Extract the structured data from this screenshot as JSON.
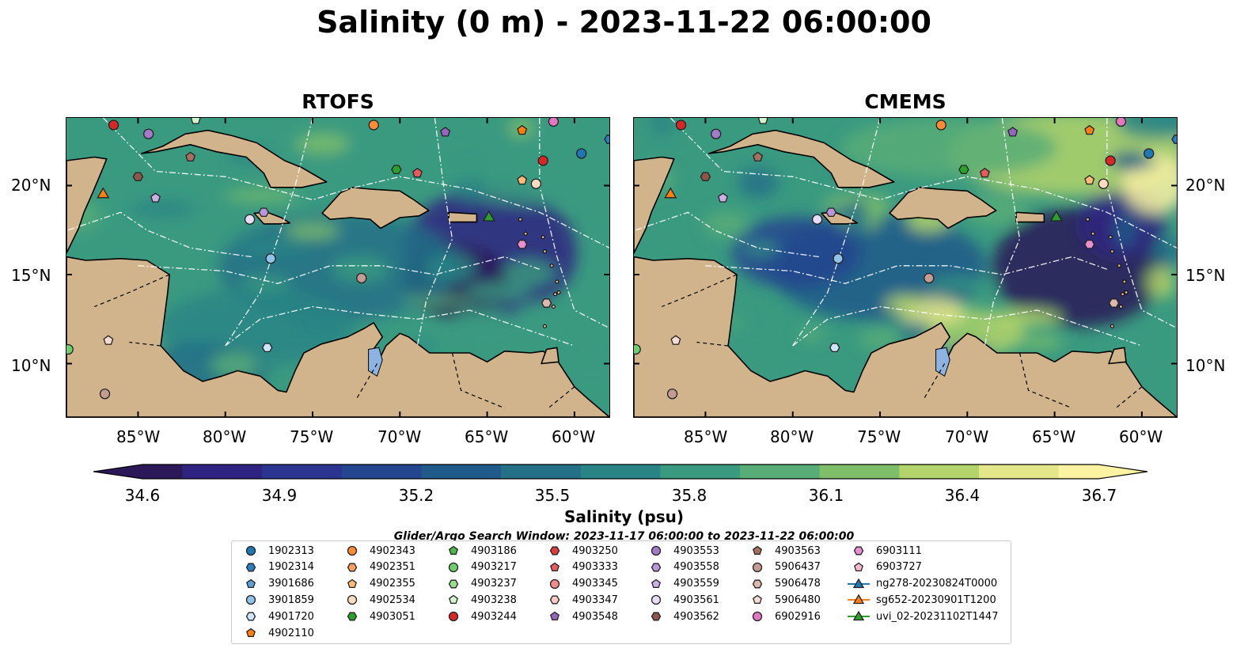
{
  "title": "Salinity (0 m) - 2023-11-22 06:00:00",
  "panels": [
    {
      "title": "RTOFS",
      "variant": "rtofs"
    },
    {
      "title": "CMEMS",
      "variant": "cmems"
    }
  ],
  "lon_ticks": [
    "85°W",
    "80°W",
    "75°W",
    "70°W",
    "65°W",
    "60°W"
  ],
  "lat_ticks": [
    "20°N",
    "15°N",
    "10°N"
  ],
  "colorbar": {
    "label": "Salinity (psu)",
    "ticks": [
      "34.6",
      "34.9",
      "35.2",
      "35.5",
      "35.8",
      "36.1",
      "36.4",
      "36.7"
    ],
    "min": 34.6,
    "max": 36.7,
    "colors": [
      "#2a1858",
      "#2e2380",
      "#2b3491",
      "#23468f",
      "#1f5a8a",
      "#237087",
      "#298585",
      "#3a9a80",
      "#58ad77",
      "#7fbf6a",
      "#b3d46a",
      "#e4e68a",
      "#fbf2a2"
    ]
  },
  "search_window": "Glider/Argo Search Window: 2023-11-17 06:00:00 to 2023-11-22 06:00:00",
  "legend": [
    {
      "label": "1902313",
      "marker": "circle",
      "color": "#1f77b4"
    },
    {
      "label": "1902314",
      "marker": "hexagon",
      "color": "#2a7fc0"
    },
    {
      "label": "3901686",
      "marker": "pentagon",
      "color": "#5a9fd6"
    },
    {
      "label": "3901859",
      "marker": "circle",
      "color": "#8fc3ea"
    },
    {
      "label": "4901720",
      "marker": "hexagon",
      "color": "#cfe6fa"
    },
    {
      "label": "4902110",
      "marker": "pentagon",
      "color": "#ff7f0e"
    },
    {
      "label": "4902343",
      "marker": "circle",
      "color": "#ff8c33"
    },
    {
      "label": "4902351",
      "marker": "hexagon",
      "color": "#ffa060"
    },
    {
      "label": "4902355",
      "marker": "pentagon",
      "color": "#ffbb78"
    },
    {
      "label": "4902534",
      "marker": "circle",
      "color": "#ffdcbf"
    },
    {
      "label": "4903051",
      "marker": "hexagon",
      "color": "#2ca02c"
    },
    {
      "label": "4903186",
      "marker": "pentagon",
      "color": "#4bb84b"
    },
    {
      "label": "4903217",
      "marker": "circle",
      "color": "#6fcf6f"
    },
    {
      "label": "4903237",
      "marker": "hexagon",
      "color": "#98df8a"
    },
    {
      "label": "4903238",
      "marker": "pentagon",
      "color": "#d2f5cc"
    },
    {
      "label": "4903244",
      "marker": "circle",
      "color": "#d62728"
    },
    {
      "label": "4903250",
      "marker": "hexagon",
      "color": "#dd3c3d"
    },
    {
      "label": "4903333",
      "marker": "pentagon",
      "color": "#e85a5b"
    },
    {
      "label": "4903345",
      "marker": "circle",
      "color": "#f28b8c"
    },
    {
      "label": "4903347",
      "marker": "hexagon",
      "color": "#fdc9c9"
    },
    {
      "label": "4903548",
      "marker": "pentagon",
      "color": "#9467bd"
    },
    {
      "label": "4903553",
      "marker": "circle",
      "color": "#a47bcb"
    },
    {
      "label": "4903558",
      "marker": "hexagon",
      "color": "#b996da"
    },
    {
      "label": "4903559",
      "marker": "pentagon",
      "color": "#cbb0e8"
    },
    {
      "label": "4903561",
      "marker": "circle",
      "color": "#e8dcf7"
    },
    {
      "label": "4903562",
      "marker": "hexagon",
      "color": "#8c564b"
    },
    {
      "label": "4903563",
      "marker": "pentagon",
      "color": "#a4705f"
    },
    {
      "label": "5906437",
      "marker": "circle",
      "color": "#c49c94"
    },
    {
      "label": "5906478",
      "marker": "hexagon",
      "color": "#ddb8ae"
    },
    {
      "label": "5906480",
      "marker": "pentagon",
      "color": "#f5dcd5"
    },
    {
      "label": "6902916",
      "marker": "circle",
      "color": "#e377c2"
    },
    {
      "label": "6903111",
      "marker": "hexagon",
      "color": "#ea8fd0"
    },
    {
      "label": "6903727",
      "marker": "pentagon",
      "color": "#f7b6d2"
    },
    {
      "label": "ng278-20230824T0000",
      "marker": "triangle-line",
      "color": "#1f77b4"
    },
    {
      "label": "sg652-20230901T1200",
      "marker": "triangle-line",
      "color": "#ff7f0e"
    },
    {
      "label": "uvi_02-20231102T1447",
      "marker": "triangle-line",
      "color": "#2ca02c"
    }
  ],
  "floats": [
    {
      "id": "4903244",
      "lon": -86.4,
      "lat": 23.4,
      "cmems_only": false
    },
    {
      "id": "4903553",
      "lon": -84.4,
      "lat": 22.9,
      "cmems_only": false
    },
    {
      "id": "4903238",
      "lon": -81.7,
      "lat": 23.7,
      "cmems_only": false
    },
    {
      "id": "4902343",
      "lon": -71.5,
      "lat": 23.4,
      "cmems_only": false
    },
    {
      "id": "4903548",
      "lon": -67.4,
      "lat": 23.0,
      "cmems_only": false
    },
    {
      "id": "4902110",
      "lon": -63.0,
      "lat": 23.1,
      "cmems_only": false
    },
    {
      "id": "6902916",
      "lon": -61.2,
      "lat": 23.6,
      "cmems_only": false
    },
    {
      "id": "1902313",
      "lon": -59.6,
      "lat": 21.8,
      "cmems_only": false
    },
    {
      "id": "4903244",
      "lon": -61.8,
      "lat": 21.4,
      "cmems_only": false
    },
    {
      "id": "4903562",
      "lon": -85.0,
      "lat": 20.5,
      "cmems_only": false
    },
    {
      "id": "4903563",
      "lon": -82.0,
      "lat": 21.6,
      "cmems_only": false
    },
    {
      "id": "4903051",
      "lon": -70.2,
      "lat": 20.9,
      "cmems_only": false
    },
    {
      "id": "4903333",
      "lon": -69.0,
      "lat": 20.7,
      "cmems_only": false
    },
    {
      "id": "4902355",
      "lon": -63.0,
      "lat": 20.3,
      "cmems_only": false
    },
    {
      "id": "4902534",
      "lon": -62.2,
      "lat": 20.1,
      "cmems_only": false
    },
    {
      "id": "4903559",
      "lon": -84.0,
      "lat": 19.3,
      "cmems_only": false
    },
    {
      "id": "4903561",
      "lon": -78.6,
      "lat": 18.1,
      "cmems_only": false
    },
    {
      "id": "4903558",
      "lon": -77.8,
      "lat": 18.5,
      "cmems_only": false
    },
    {
      "id": "3901859",
      "lon": -77.4,
      "lat": 15.9,
      "cmems_only": false
    },
    {
      "id": "5906437",
      "lon": -72.2,
      "lat": 14.8,
      "cmems_only": false
    },
    {
      "id": "6903111",
      "lon": -63.0,
      "lat": 16.7,
      "cmems_only": false
    },
    {
      "id": "5906478",
      "lon": -61.6,
      "lat": 13.4,
      "cmems_only": false
    },
    {
      "id": "4901720",
      "lon": -77.6,
      "lat": 10.9,
      "cmems_only": false
    },
    {
      "id": "5906480",
      "lon": -86.7,
      "lat": 11.3,
      "cmems_only": false
    },
    {
      "id": "5906437",
      "lon": -86.9,
      "lat": 8.3,
      "cmems_only": false
    },
    {
      "id": "4903217",
      "lon": -89.0,
      "lat": 10.8,
      "cmems_only": false
    },
    {
      "id": "1902314",
      "lon": -58.0,
      "lat": 22.6,
      "cmems_only": false
    }
  ],
  "gliders": [
    {
      "id": "sg652-20230901T1200",
      "lon": -87.0,
      "lat": 19.5,
      "color": "#ff7f0e"
    },
    {
      "id": "uvi_02-20231102T1447",
      "lon": -64.9,
      "lat": 18.2,
      "color": "#2ca02c"
    }
  ]
}
